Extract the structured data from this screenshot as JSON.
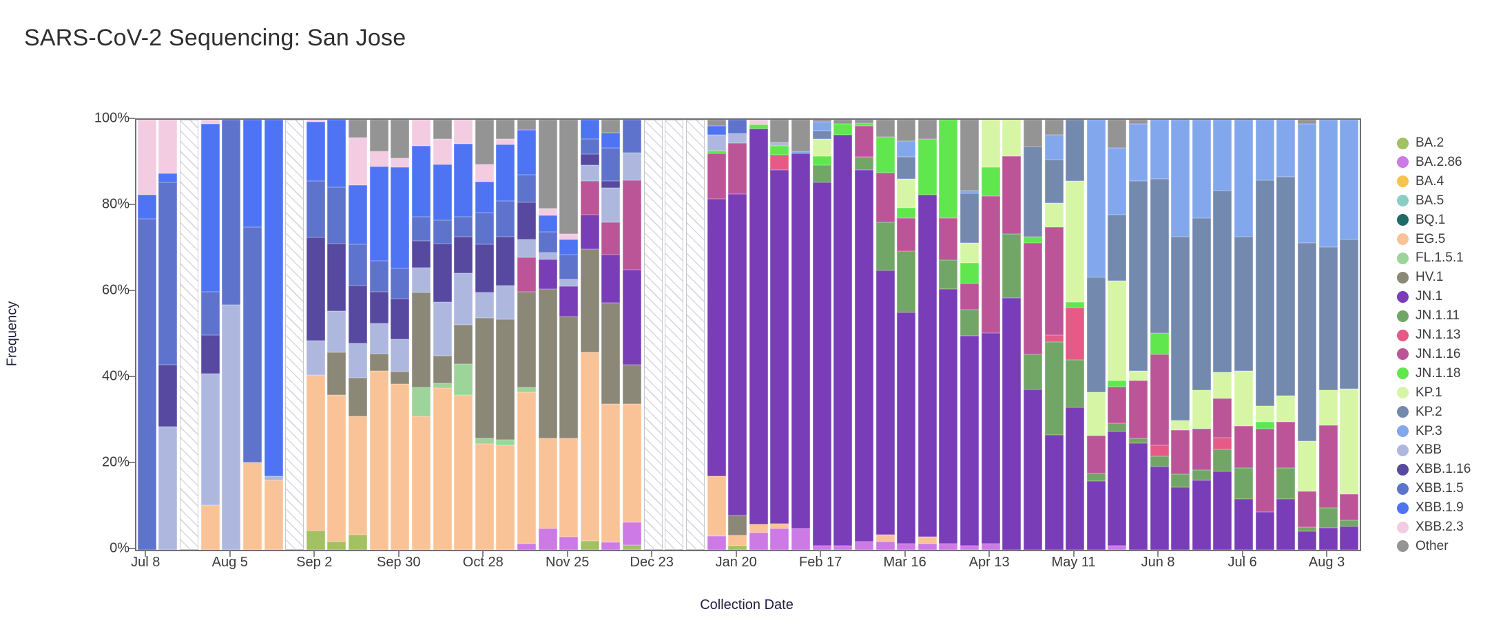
{
  "title": "SARS-CoV-2 Sequencing: San Jose",
  "chart_data": {
    "type": "bar",
    "subtype": "stacked-100pct-weekly",
    "title": "SARS-CoV-2 Sequencing: San Jose",
    "xlabel": "Collection Date",
    "ylabel": "Frequency",
    "ylim": [
      0,
      100
    ],
    "grid": false,
    "legend_position": "right",
    "y_tick_labels": [
      "0%",
      "20%",
      "40%",
      "60%",
      "80%",
      "100%"
    ],
    "x_tick_labels": [
      "Jul 8",
      "Aug 5",
      "Sep 2",
      "Sep 30",
      "Oct 28",
      "Nov 25",
      "Dec 23",
      "Jan 20",
      "Feb 17",
      "Mar 16",
      "Apr 13",
      "May 11",
      "Jun 8",
      "Jul 6",
      "Aug 3"
    ],
    "x_tick_every_n_weeks": 4,
    "variants": [
      {
        "name": "BA.2",
        "color": "#a3c162"
      },
      {
        "name": "BA.2.86",
        "color": "#cd79e6"
      },
      {
        "name": "BA.4",
        "color": "#f7c24e"
      },
      {
        "name": "BA.5",
        "color": "#8bcdc5"
      },
      {
        "name": "BQ.1",
        "color": "#1f6b66"
      },
      {
        "name": "EG.5",
        "color": "#fac397"
      },
      {
        "name": "FL.1.5.1",
        "color": "#9cd49a"
      },
      {
        "name": "HV.1",
        "color": "#8c8878"
      },
      {
        "name": "JN.1",
        "color": "#7a3db8"
      },
      {
        "name": "JN.1.11",
        "color": "#72a667"
      },
      {
        "name": "JN.1.13",
        "color": "#e75a87"
      },
      {
        "name": "JN.1.16",
        "color": "#bc5598"
      },
      {
        "name": "JN.1.18",
        "color": "#5fe74d"
      },
      {
        "name": "KP.1",
        "color": "#d6f6a5"
      },
      {
        "name": "KP.2",
        "color": "#7389ae"
      },
      {
        "name": "KP.3",
        "color": "#82a7ec"
      },
      {
        "name": "XBB",
        "color": "#aeb8df"
      },
      {
        "name": "XBB.1.16",
        "color": "#57499f"
      },
      {
        "name": "XBB.1.5",
        "color": "#5e74cc"
      },
      {
        "name": "XBB.1.9",
        "color": "#4e74f4"
      },
      {
        "name": "XBB.2.3",
        "color": "#f4cce2"
      },
      {
        "name": "Other",
        "color": "#949494"
      }
    ],
    "weeks": [
      {
        "date": "Jul 8",
        "segments": {
          "XBB.1.5": 77,
          "XBB.1.9": 5.5,
          "XBB.2.3": 17.5
        }
      },
      {
        "date": "Jul 15",
        "segments": {
          "XBB": 28.7,
          "XBB.1.16": 14.3,
          "XBB.1.5": 42.5,
          "XBB.1.9": 2,
          "XBB.2.3": 12.5
        }
      },
      {
        "date": "Jul 22",
        "no_data": true
      },
      {
        "date": "Jul 29",
        "segments": {
          "EG.5": 10.4,
          "XBB": 30.6,
          "XBB.1.16": 9,
          "XBB.1.5": 10,
          "XBB.1.9": 39,
          "XBB.2.3": 1
        }
      },
      {
        "date": "Aug 5",
        "segments": {
          "XBB": 57,
          "XBB.1.5": 43
        }
      },
      {
        "date": "Aug 12",
        "segments": {
          "EG.5": 20.4,
          "XBB.1.5": 54.6,
          "XBB.1.9": 25
        }
      },
      {
        "date": "Aug 19",
        "segments": {
          "EG.5": 16.2,
          "XBB": 1,
          "XBB.1.9": 82.8
        }
      },
      {
        "date": "Aug 26",
        "no_data": true
      },
      {
        "date": "Sep 2",
        "segments": {
          "BA.2": 4.5,
          "EG.5": 36.1,
          "XBB": 8,
          "XBB.1.16": 24,
          "XBB.1.5": 13.1,
          "XBB.1.9": 13.8,
          "XBB.2.3": 0.5
        }
      },
      {
        "date": "Sep 9",
        "segments": {
          "BA.2": 2,
          "EG.5": 34,
          "HV.1": 9.9,
          "XBB": 9.6,
          "XBB.1.16": 15.7,
          "XBB.1.5": 13.1,
          "XBB.1.9": 15.7
        }
      },
      {
        "date": "Sep 16",
        "segments": {
          "BA.2": 3.5,
          "EG.5": 27.5,
          "HV.1": 9,
          "XBB": 8,
          "XBB.1.16": 13.4,
          "XBB.1.5": 9.6,
          "XBB.1.9": 13.8,
          "XBB.2.3": 11,
          "Other": 4.2
        }
      },
      {
        "date": "Sep 23",
        "segments": {
          "EG.5": 41.6,
          "HV.1": 4,
          "XBB": 7,
          "XBB.1.16": 7.4,
          "XBB.1.5": 7.2,
          "XBB.1.9": 21.9,
          "XBB.2.3": 3.5,
          "Other": 7.4
        }
      },
      {
        "date": "Sep 30",
        "segments": {
          "EG.5": 38.6,
          "HV.1": 2.8,
          "XBB": 7.5,
          "XBB.1.16": 9.5,
          "XBB.1.5": 7,
          "XBB.1.9": 23.6,
          "XBB.2.3": 2,
          "Other": 9
        }
      },
      {
        "date": "Oct 7",
        "segments": {
          "EG.5": 31.1,
          "FL.1.5.1": 6.7,
          "HV.1": 22,
          "XBB": 5.8,
          "XBB.1.16": 6.2,
          "XBB.1.5": 5.6,
          "XBB.1.9": 16.6,
          "XBB.2.3": 6
        }
      },
      {
        "date": "Oct 14",
        "segments": {
          "EG.5": 37.6,
          "FL.1.5.1": 1.1,
          "HV.1": 6.4,
          "XBB": 12.5,
          "XBB.1.16": 13.6,
          "XBB.1.5": 5.4,
          "XBB.1.9": 13,
          "XBB.2.3": 5.9,
          "Other": 4.5
        }
      },
      {
        "date": "Oct 21",
        "segments": {
          "EG.5": 36,
          "FL.1.5.1": 7.2,
          "HV.1": 9.1,
          "XBB": 12,
          "XBB.1.16": 8.5,
          "XBB.1.5": 4.6,
          "XBB.1.9": 17,
          "XBB.2.3": 5.6
        }
      },
      {
        "date": "Oct 28",
        "segments": {
          "EG.5": 24.6,
          "FL.1.5.1": 1.3,
          "HV.1": 28,
          "XBB": 5.9,
          "XBB.1.16": 11.2,
          "XBB.1.5": 7.4,
          "XBB.1.9": 7.2,
          "XBB.2.3": 4,
          "Other": 10.4
        }
      },
      {
        "date": "Nov 4",
        "segments": {
          "EG.5": 24.3,
          "FL.1.5.1": 1.3,
          "HV.1": 28,
          "XBB": 7.8,
          "XBB.1.16": 11.4,
          "XBB.1.5": 8.3,
          "XBB.1.9": 13.1,
          "XBB.2.3": 1.3,
          "Other": 4.5
        }
      },
      {
        "date": "Nov 11",
        "segments": {
          "BA.2.86": 1.5,
          "EG.5": 35.2,
          "FL.1.5.1": 1,
          "HV.1": 22.3,
          "JN.1.16": 8,
          "XBB": 4.2,
          "XBB.1.16": 8.6,
          "XBB.1.5": 6.4,
          "XBB.1.9": 10.4,
          "Other": 2.4
        }
      },
      {
        "date": "Nov 18",
        "segments": {
          "BA.2.86": 5,
          "EG.5": 20.9,
          "HV.1": 34.7,
          "JN.1": 7,
          "XBB": 1.6,
          "XBB.1.5": 4.8,
          "XBB.1.9": 3.7,
          "XBB.2.3": 1.6,
          "Other": 20.7
        }
      },
      {
        "date": "Nov 25",
        "segments": {
          "BA.2.86": 3,
          "EG.5": 23,
          "HV.1": 28.3,
          "JN.1": 7,
          "XBB": 1.6,
          "XBB.1.5": 5.8,
          "XBB.1.9": 3.5,
          "XBB.2.3": 1.3,
          "Other": 26.5
        }
      },
      {
        "date": "Dec 2",
        "segments": {
          "BA.2": 2.1,
          "EG.5": 43.9,
          "HV.1": 24,
          "JN.1": 8,
          "JN.1.16": 7.7,
          "XBB": 3.8,
          "XBB.1.16": 2.5,
          "XBB.1.5": 3.5,
          "XBB.1.9": 4.5
        }
      },
      {
        "date": "Dec 9",
        "segments": {
          "BA.2.86": 1.7,
          "EG.5": 32.2,
          "HV.1": 23.6,
          "JN.1": 11.2,
          "JN.1.16": 7.5,
          "XBB": 8,
          "XBB.1.16": 1.6,
          "XBB.1.5": 7.7,
          "XBB.1.9": 3.5,
          "Other": 3
        }
      },
      {
        "date": "Dec 16",
        "segments": {
          "BA.2": 1.2,
          "BA.2.86": 5.2,
          "EG.5": 27.6,
          "HV.1": 9,
          "JN.1": 22.1,
          "JN.1.16": 20.8,
          "XBB": 6.4,
          "XBB.1.5": 7.7
        }
      },
      {
        "date": "Dec 23",
        "no_data": true
      },
      {
        "date": "Dec 30",
        "no_data": true
      },
      {
        "date": "Jan 6",
        "no_data": true
      },
      {
        "date": "Jan 13",
        "segments": {
          "BA.2.86": 3.2,
          "EG.5": 13.9,
          "JN.1": 64.5,
          "JN.1.16": 10.6,
          "JN.1.18": 0.6,
          "XBB": 3.7,
          "XBB.1.9": 2,
          "Other": 1.5
        }
      },
      {
        "date": "Jan 20",
        "segments": {
          "BA.2": 1,
          "EG.5": 2.4,
          "HV.1": 4.6,
          "JN.1": 74.8,
          "JN.1.16": 11.7,
          "XBB": 2.3,
          "XBB.1.5": 3.2
        }
      },
      {
        "date": "Jan 27",
        "segments": {
          "BA.2.86": 4,
          "EG.5": 2,
          "JN.1": 91.9,
          "JN.1.18": 1,
          "XBB.2.3": 1.1
        }
      },
      {
        "date": "Feb 3",
        "segments": {
          "BA.2.86": 5,
          "EG.5": 1.1,
          "JN.1": 82.3,
          "JN.1.13": 3.5,
          "JN.1.18": 2,
          "XBB": 0.9,
          "Other": 5.2
        }
      },
      {
        "date": "Feb 10",
        "segments": {
          "BA.2.86": 5,
          "JN.1": 87.2,
          "KP.3": 0.5,
          "Other": 7.3
        }
      },
      {
        "date": "Feb 17",
        "segments": {
          "BA.2.86": 1,
          "JN.1": 84.5,
          "JN.1.11": 4,
          "JN.1.18": 2,
          "KP.1": 4,
          "KP.2": 2,
          "KP.3": 2,
          "Other": 0.5
        }
      },
      {
        "date": "Feb 24",
        "segments": {
          "BA.2.86": 1,
          "JN.1": 95.5,
          "JN.1.18": 2.5,
          "Other": 1
        }
      },
      {
        "date": "Mar 2",
        "segments": {
          "BA.2.86": 2,
          "JN.1": 86.4,
          "JN.1.11": 3,
          "JN.1.16": 7.1,
          "JN.1.18": 0.7,
          "Other": 0.8
        }
      },
      {
        "date": "Mar 9",
        "segments": {
          "BA.2.86": 2,
          "EG.5": 1.5,
          "JN.1": 61.5,
          "JN.1.11": 11.2,
          "JN.1.16": 11.5,
          "JN.1.18": 8.3,
          "Other": 4
        }
      },
      {
        "date": "Mar 16",
        "segments": {
          "BA.2.86": 1.5,
          "JN.1": 53.7,
          "JN.1.11": 14.2,
          "JN.1.16": 7.8,
          "JN.1.18": 2.4,
          "KP.1": 6.7,
          "KP.2": 5.1,
          "KP.3": 3.7,
          "Other": 4.9
        }
      },
      {
        "date": "Mar 23",
        "segments": {
          "BA.2.86": 1.5,
          "EG.5": 1.5,
          "JN.1": 79.6,
          "JN.1.18": 12.9,
          "Other": 4.5
        }
      },
      {
        "date": "Mar 30",
        "segments": {
          "BA.2.86": 1.5,
          "JN.1": 59.1,
          "JN.1.11": 6.8,
          "JN.1.16": 9.8,
          "JN.1.18": 22.8
        }
      },
      {
        "date": "Apr 6",
        "segments": {
          "BA.2.86": 1,
          "JN.1": 48.8,
          "JN.1.11": 6.1,
          "JN.1.16": 6.1,
          "JN.1.18": 4.7,
          "KP.1": 4.7,
          "KP.2": 11.5,
          "KP.3": 0.7,
          "Other": 16.4
        }
      },
      {
        "date": "Apr 13",
        "segments": {
          "BA.2.86": 1.5,
          "JN.1": 48.9,
          "JN.1.16": 31.9,
          "JN.1.18": 6.7,
          "KP.1": 11
        }
      },
      {
        "date": "Apr 20",
        "segments": {
          "JN.1": 58.6,
          "JN.1.11": 14.9,
          "JN.1.16": 18,
          "KP.1": 8.5
        }
      },
      {
        "date": "Apr 27",
        "segments": {
          "JN.1": 37.3,
          "JN.1.11": 8.1,
          "JN.1.16": 26,
          "JN.1.18": 1.4,
          "KP.2": 20.9,
          "Other": 6.3
        }
      },
      {
        "date": "May 4",
        "segments": {
          "JN.1": 26.7,
          "JN.1.11": 21.6,
          "JN.1.13": 1.7,
          "JN.1.16": 25.1,
          "KP.1": 5.5,
          "KP.2": 10.2,
          "KP.3": 5.7,
          "Other": 3.5
        }
      },
      {
        "date": "May 11",
        "segments": {
          "JN.1": 33.2,
          "JN.1.11": 10.9,
          "JN.1.13": 12.2,
          "JN.1.18": 1.3,
          "KP.1": 28.1,
          "KP.2": 14.3
        }
      },
      {
        "date": "May 18",
        "segments": {
          "JN.1": 16,
          "JN.1.11": 1.7,
          "JN.1.16": 8.9,
          "KP.1": 10,
          "KP.2": 26.7,
          "KP.3": 36.7
        }
      },
      {
        "date": "May 25",
        "segments": {
          "BA.2.86": 1,
          "JN.1": 26.5,
          "JN.1.11": 1.9,
          "JN.1.16": 8.5,
          "JN.1.18": 1.4,
          "KP.1": 23.3,
          "KP.2": 15.3,
          "KP.3": 15.6,
          "Other": 6.5
        }
      },
      {
        "date": "Jun 1",
        "segments": {
          "JN.1": 24.8,
          "JN.1.11": 1.1,
          "JN.1.16": 13.4,
          "KP.1": 2.3,
          "KP.2": 44.1,
          "KP.3": 13.3,
          "Other": 1
        }
      },
      {
        "date": "Jun 8",
        "segments": {
          "JN.1": 19.3,
          "JN.1.11": 2.5,
          "JN.1.13": 2.5,
          "JN.1.16": 21.1,
          "JN.1.18": 5,
          "KP.2": 35.9,
          "KP.3": 13.7
        }
      },
      {
        "date": "Jun 15",
        "segments": {
          "JN.1": 14.6,
          "JN.1.11": 3,
          "JN.1.16": 10.2,
          "KP.1": 2.3,
          "KP.2": 42.7,
          "KP.3": 27.2
        }
      },
      {
        "date": "Jun 22",
        "segments": {
          "JN.1": 16.2,
          "JN.1.11": 2.4,
          "JN.1.16": 9.5,
          "KP.1": 9.1,
          "KP.2": 40,
          "KP.3": 22.8
        }
      },
      {
        "date": "Jun 29",
        "segments": {
          "JN.1": 18.3,
          "JN.1.11": 5.1,
          "JN.1.13": 2.7,
          "JN.1.16": 9.1,
          "KP.1": 6.1,
          "KP.2": 42.3,
          "KP.3": 16.4
        }
      },
      {
        "date": "Jul 6",
        "segments": {
          "JN.1": 11.8,
          "JN.1.11": 7.2,
          "JN.1.16": 9.8,
          "KP.1": 12.8,
          "KP.2": 31.2,
          "KP.3": 27.2
        }
      },
      {
        "date": "Jul 13",
        "segments": {
          "JN.1": 8.8,
          "JN.1.16": 19.3,
          "JN.1.18": 1.7,
          "KP.1": 3.7,
          "KP.2": 52.5,
          "KP.3": 14
        }
      },
      {
        "date": "Jul 20",
        "segments": {
          "JN.1": 11.8,
          "JN.1.11": 7.2,
          "JN.1.16": 10.8,
          "KP.1": 6.1,
          "KP.2": 50.8,
          "KP.3": 13.3
        }
      },
      {
        "date": "Jul 27",
        "segments": {
          "JN.1": 4.3,
          "JN.1.11": 1,
          "JN.1.16": 8.3,
          "KP.1": 11.7,
          "KP.2": 46,
          "KP.3": 27.7,
          "Other": 1
        }
      },
      {
        "date": "Aug 3",
        "segments": {
          "JN.1": 5.2,
          "JN.1.11": 4.6,
          "JN.1.16": 19.2,
          "KP.1": 8.1,
          "KP.2": 33.3,
          "KP.3": 29.6
        }
      },
      {
        "date": "Aug 10",
        "segments": {
          "JN.1": 5.5,
          "JN.1.11": 1.4,
          "JN.1.16": 6.1,
          "KP.1": 24.4,
          "KP.2": 34.8,
          "KP.3": 27.8
        }
      }
    ]
  }
}
